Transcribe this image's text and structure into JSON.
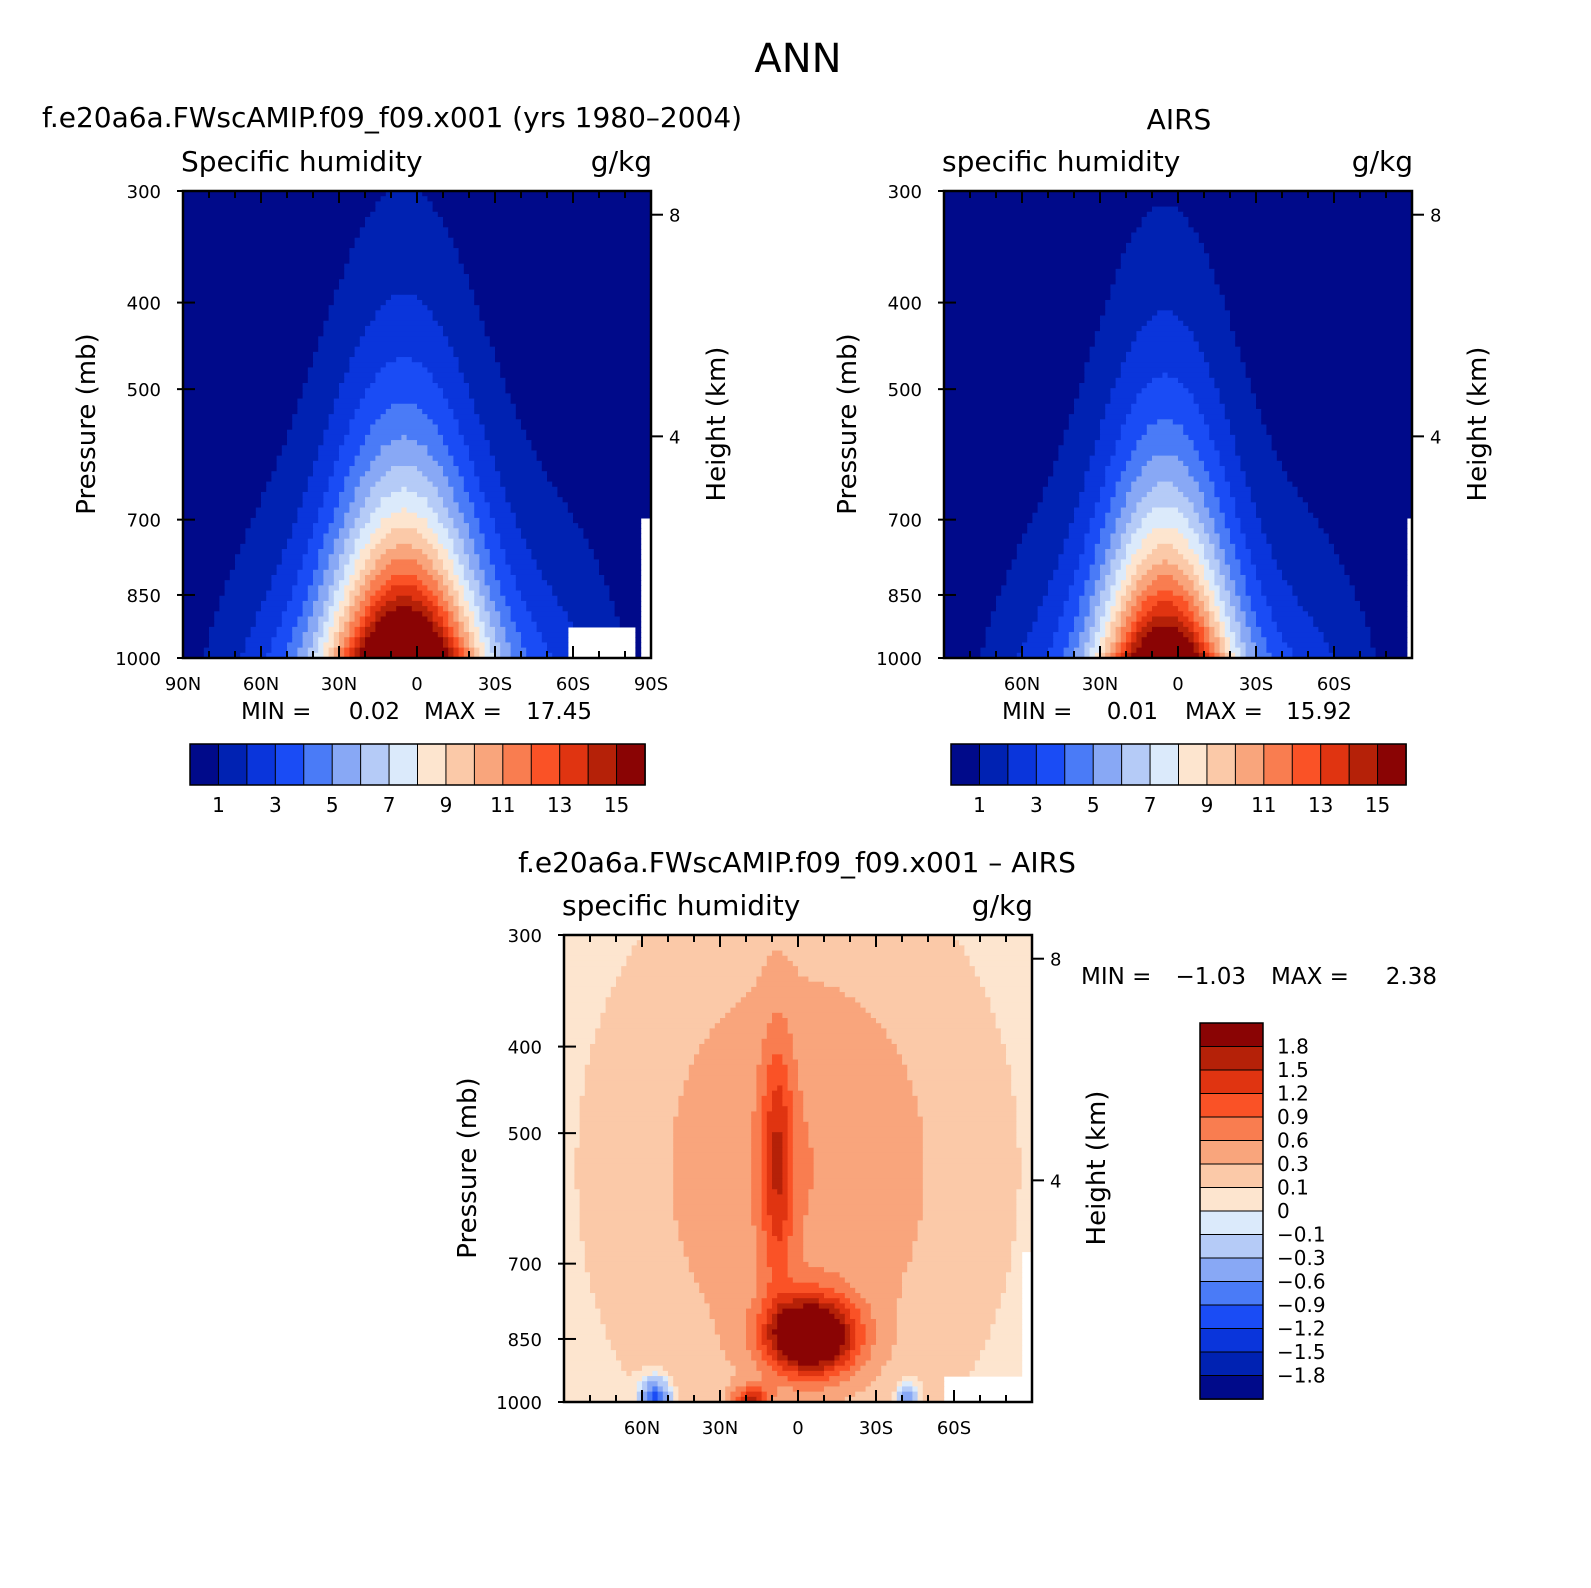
{
  "figure": {
    "title": "ANN"
  },
  "chart_data": [
    {
      "type": "heatmap",
      "panel_title": "f.e20a6a.FWscAMIP.f09_f09.x001 (yrs 1980–2004)",
      "variable": "Specific humidity",
      "units": "g/kg",
      "xlabel": "",
      "ylabel": "Pressure (mb)",
      "ylabel_right": "Height (km)",
      "x_tick_labels": [
        "90N",
        "60N",
        "30N",
        "0",
        "30S",
        "60S",
        "90S"
      ],
      "xlim": [
        90,
        -90
      ],
      "ylim": [
        1000,
        300
      ],
      "y_scale": "log",
      "y_ticks": [
        300,
        400,
        500,
        700,
        850,
        1000
      ],
      "height_ticks": [
        8,
        4
      ],
      "min_label": "MIN =",
      "min": "0.02",
      "max_label": "MAX =",
      "max": "17.45",
      "colorbar_labels": [
        "1",
        "3",
        "5",
        "7",
        "9",
        "11",
        "13",
        "15"
      ],
      "field": "model"
    },
    {
      "type": "heatmap",
      "panel_title": "AIRS",
      "variable": "specific humidity",
      "units": "g/kg",
      "xlabel": "",
      "ylabel": "Pressure (mb)",
      "ylabel_right": "Height (km)",
      "x_tick_labels": [
        "60N",
        "30N",
        "0",
        "30S",
        "60S"
      ],
      "xlim": [
        90,
        -90
      ],
      "ylim": [
        1000,
        300
      ],
      "y_scale": "log",
      "y_ticks": [
        300,
        400,
        500,
        700,
        850,
        1000
      ],
      "height_ticks": [
        8,
        4
      ],
      "min_label": "MIN =",
      "min": "0.01",
      "max_label": "MAX =",
      "max": "15.92",
      "colorbar_labels": [
        "1",
        "3",
        "5",
        "7",
        "9",
        "11",
        "13",
        "15"
      ],
      "field": "obs"
    },
    {
      "type": "heatmap",
      "panel_title": "f.e20a6a.FWscAMIP.f09_f09.x001 – AIRS",
      "variable": "specific humidity",
      "units": "g/kg",
      "xlabel": "",
      "ylabel": "Pressure (mb)",
      "ylabel_right": "Height (km)",
      "x_tick_labels": [
        "60N",
        "30N",
        "0",
        "30S",
        "60S"
      ],
      "xlim": [
        90,
        -90
      ],
      "ylim": [
        1000,
        300
      ],
      "y_scale": "log",
      "y_ticks": [
        300,
        400,
        500,
        700,
        850,
        1000
      ],
      "height_ticks": [
        8,
        4
      ],
      "min_label": "MIN =",
      "min": "−1.03",
      "max_label": "MAX =",
      "max": "2.38",
      "colorbar_labels": [
        "1.8",
        "1.5",
        "1.2",
        "0.9",
        "0.6",
        "0.3",
        "0.1",
        "0",
        "−0.1",
        "−0.3",
        "−0.6",
        "−0.9",
        "−1.2",
        "−1.5",
        "−1.8"
      ],
      "field": "diff"
    }
  ],
  "colors": {
    "levels_16": [
      "#000a8a",
      "#0022b2",
      "#0a35db",
      "#1a4cf5",
      "#4a7bf7",
      "#88a8f5",
      "#b5cbf7",
      "#dbeafb",
      "#fde5cf",
      "#fbc9a8",
      "#f9a57c",
      "#f97d50",
      "#fa5226",
      "#e03411",
      "#b52108",
      "#8a0404"
    ]
  }
}
